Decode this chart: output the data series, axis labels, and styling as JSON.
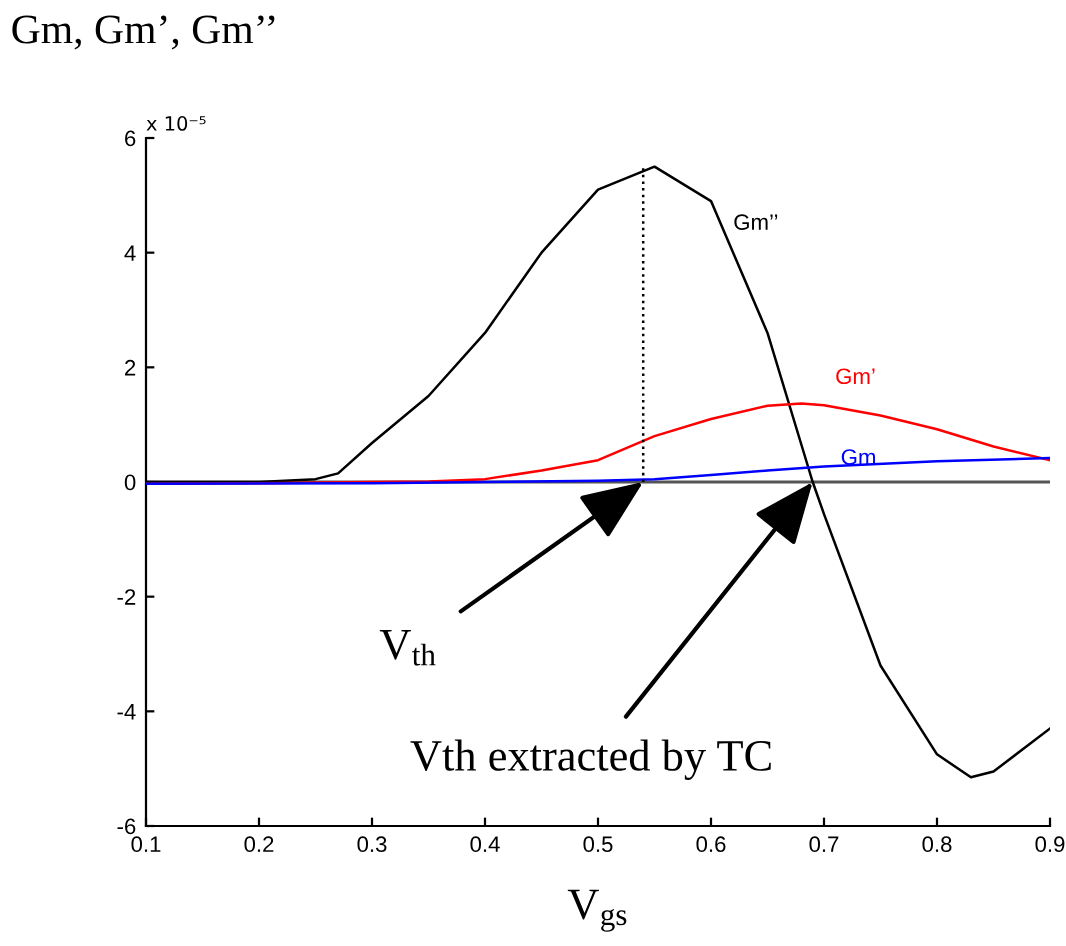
{
  "chart_data": {
    "type": "line",
    "title": "Gm, Gm’, Gm’’",
    "xlabel": "V$_{gs}$",
    "xlim": [
      0.1,
      0.9
    ],
    "ylim": [
      -6,
      6
    ],
    "xticks": [
      0.1,
      0.2,
      0.3,
      0.4,
      0.5,
      0.6,
      0.7,
      0.8,
      0.9
    ],
    "yticks": [
      -6,
      -4,
      -2,
      0,
      2,
      4,
      6
    ],
    "grid": false,
    "legend": false,
    "marker": "none",
    "series": [
      {
        "name": "Gm’’",
        "color": "#000000",
        "x": [
          0.1,
          0.2,
          0.25,
          0.27,
          0.3,
          0.35,
          0.4,
          0.45,
          0.5,
          0.55,
          0.6,
          0.65,
          0.69,
          0.7,
          0.75,
          0.8,
          0.83,
          0.85,
          0.9
        ],
        "values": [
          0,
          0,
          0.05,
          0.15,
          0.68,
          1.5,
          2.6,
          4.0,
          5.1,
          5.5,
          4.9,
          2.6,
          0,
          -0.56,
          -3.2,
          -4.75,
          -5.15,
          -5.05,
          -4.3
        ]
      },
      {
        "name": "Gm’",
        "color": "#ff0000",
        "x": [
          0.1,
          0.2,
          0.3,
          0.35,
          0.4,
          0.45,
          0.5,
          0.55,
          0.6,
          0.65,
          0.68,
          0.7,
          0.75,
          0.8,
          0.85,
          0.9
        ],
        "values": [
          -0.03,
          -0.02,
          0,
          0.01,
          0.05,
          0.2,
          0.38,
          0.8,
          1.1,
          1.33,
          1.37,
          1.34,
          1.16,
          0.92,
          0.62,
          0.38
        ]
      },
      {
        "name": "Gm",
        "color": "#0000ff",
        "x": [
          0.1,
          0.3,
          0.5,
          0.55,
          0.6,
          0.65,
          0.7,
          0.8,
          0.9
        ],
        "values": [
          -0.03,
          -0.02,
          0.02,
          0.05,
          0.12,
          0.2,
          0.27,
          0.36,
          0.42
        ]
      },
      {
        "color": "#000000",
        "line_style": "dotted",
        "x": [
          0.54,
          0.54
        ],
        "values": [
          0,
          5.5
        ]
      }
    ],
    "ref_lines": [
      {
        "axis": "y",
        "value": 0,
        "color": "#555555"
      }
    ],
    "annotations": [
      "x 10⁻⁵",
      {
        "text": "V$_{th}$",
        "x": 0.54,
        "y": 0
      },
      {
        "text": "Vth extracted by TC",
        "x": 0.69,
        "y": 0
      }
    ]
  }
}
